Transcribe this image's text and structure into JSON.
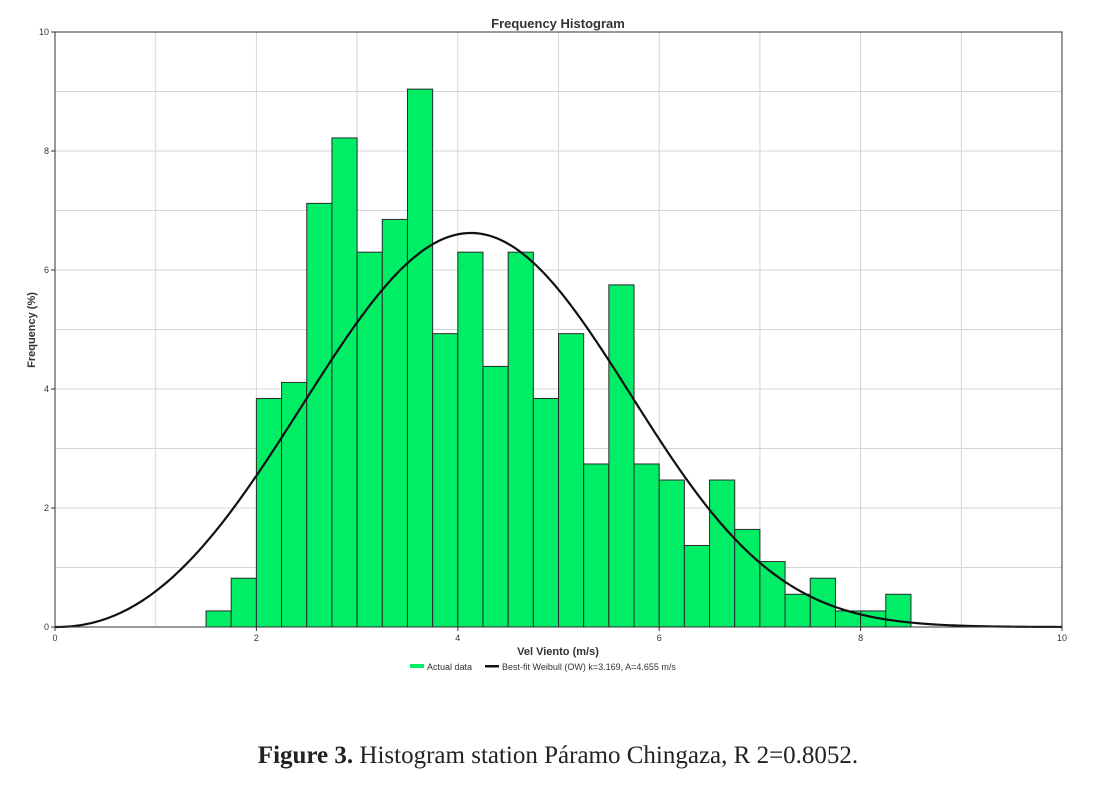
{
  "chart_data": {
    "type": "bar",
    "title": "Frequency Histogram",
    "xlabel": "Vel Viento (m/s)",
    "ylabel": "Frequency (%)",
    "xlim": [
      0,
      10
    ],
    "ylim": [
      0,
      10
    ],
    "x_ticks": [
      0,
      2,
      4,
      6,
      8,
      10
    ],
    "y_ticks": [
      0,
      2,
      4,
      6,
      8,
      10
    ],
    "grid": true,
    "legend_position": "bottom",
    "bin_width": 0.25,
    "bins": [
      {
        "start": 1.5,
        "value": 0.27
      },
      {
        "start": 1.75,
        "value": 0.82
      },
      {
        "start": 2.0,
        "value": 3.84
      },
      {
        "start": 2.25,
        "value": 4.11
      },
      {
        "start": 2.5,
        "value": 7.12
      },
      {
        "start": 2.75,
        "value": 8.22
      },
      {
        "start": 3.0,
        "value": 6.3
      },
      {
        "start": 3.25,
        "value": 6.85
      },
      {
        "start": 3.5,
        "value": 9.04
      },
      {
        "start": 3.75,
        "value": 4.93
      },
      {
        "start": 4.0,
        "value": 6.3
      },
      {
        "start": 4.25,
        "value": 4.38
      },
      {
        "start": 4.5,
        "value": 6.3
      },
      {
        "start": 4.75,
        "value": 3.84
      },
      {
        "start": 5.0,
        "value": 4.93
      },
      {
        "start": 5.25,
        "value": 2.74
      },
      {
        "start": 5.5,
        "value": 5.75
      },
      {
        "start": 5.75,
        "value": 2.74
      },
      {
        "start": 6.0,
        "value": 2.47
      },
      {
        "start": 6.25,
        "value": 1.37
      },
      {
        "start": 6.5,
        "value": 2.47
      },
      {
        "start": 6.75,
        "value": 1.64
      },
      {
        "start": 7.0,
        "value": 1.1
      },
      {
        "start": 7.25,
        "value": 0.55
      },
      {
        "start": 7.5,
        "value": 0.82
      },
      {
        "start": 7.75,
        "value": 0.27
      },
      {
        "start": 8.0,
        "value": 0.27
      },
      {
        "start": 8.25,
        "value": 0.55
      }
    ],
    "series": [
      {
        "name": "Actual data",
        "kind": "bar",
        "color": "#00ee66"
      },
      {
        "name": "Best-fit Weibull (OW) k=3.169, A=4.655 m/s",
        "kind": "line",
        "color": "#111111",
        "k": 3.169,
        "A": 4.655
      }
    ]
  },
  "caption": {
    "label": "Figure 3.",
    "text": " Histogram station Páramo Chingaza, R 2=0.8052."
  },
  "colors": {
    "bar_fill": "#00ee66",
    "bar_stroke": "#2a2a2a",
    "curve": "#111111",
    "grid": "#d6d6d6",
    "axis": "#333333"
  }
}
